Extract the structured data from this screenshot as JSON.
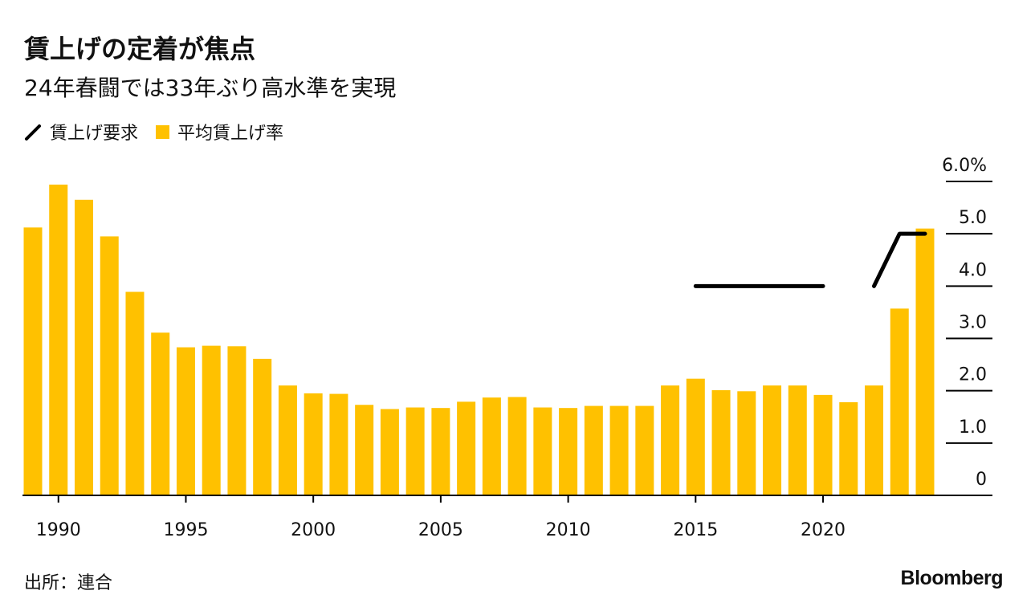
{
  "colors": {
    "bar": "#FFC100",
    "line": "#000000",
    "axis": "#000000",
    "text": "#111111"
  },
  "legend": [
    {
      "label": "賃上げ要求",
      "kind": "line"
    },
    {
      "label": "平均賃上げ率",
      "kind": "bar"
    }
  ],
  "footer": {
    "source": "出所：連合",
    "brand": "Bloomberg"
  },
  "chart_data": {
    "type": "bar",
    "title": "賃上げの定着が焦点",
    "subtitle": "24年春闘では33年ぶり高水準を実現",
    "xlabel": "",
    "ylabel": "",
    "ylim": [
      0,
      6
    ],
    "y_ticks": [
      0,
      1,
      2,
      3,
      4,
      5,
      6
    ],
    "y_tick_labels": [
      "0",
      "1.0",
      "2.0",
      "3.0",
      "4.0",
      "5.0",
      "6.0%"
    ],
    "x_tick_years": [
      1990,
      1995,
      2000,
      2005,
      2010,
      2015,
      2020
    ],
    "x_tick_labels": [
      "1990",
      "1995",
      "2000",
      "2005",
      "2010",
      "2015",
      "2020"
    ],
    "legend_position": "top-left",
    "grid": false,
    "series": [
      {
        "name": "平均賃上げ率",
        "type": "bar",
        "x": [
          1989,
          1990,
          1991,
          1992,
          1993,
          1994,
          1995,
          1996,
          1997,
          1998,
          1999,
          2000,
          2001,
          2002,
          2003,
          2004,
          2005,
          2006,
          2007,
          2008,
          2009,
          2010,
          2011,
          2012,
          2013,
          2014,
          2015,
          2016,
          2017,
          2018,
          2019,
          2020,
          2021,
          2022,
          2023,
          2024
        ],
        "values": [
          5.12,
          5.94,
          5.65,
          4.95,
          3.89,
          3.11,
          2.83,
          2.86,
          2.85,
          2.61,
          2.1,
          1.95,
          1.94,
          1.73,
          1.65,
          1.68,
          1.67,
          1.79,
          1.87,
          1.88,
          1.68,
          1.67,
          1.71,
          1.71,
          1.71,
          2.1,
          2.23,
          2.01,
          1.99,
          2.1,
          2.1,
          1.92,
          1.78,
          2.1,
          3.57,
          5.1
        ]
      },
      {
        "name": "賃上げ要求",
        "type": "line",
        "segments": [
          {
            "x": [
              2015,
              2020
            ],
            "values": [
              4.0,
              4.0
            ]
          },
          {
            "x": [
              2022,
              2023,
              2024
            ],
            "values": [
              4.0,
              5.0,
              5.0
            ]
          }
        ]
      }
    ]
  }
}
